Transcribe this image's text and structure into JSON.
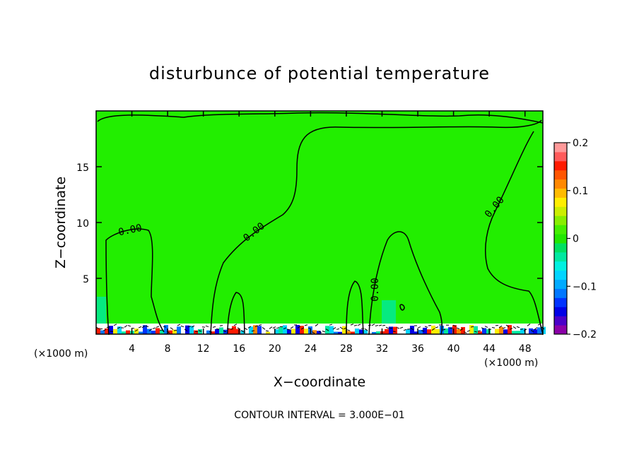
{
  "chart_data": {
    "type": "heatmap",
    "title": "disturbunce of potential temperature",
    "xlabel": "X−coordinate",
    "ylabel": "Z−coordinate",
    "x_unit_left": "(×1000 m)",
    "x_unit_right": "(×1000 m)",
    "xlim": [
      0,
      50
    ],
    "ylim": [
      0,
      20
    ],
    "x_ticks": [
      4,
      8,
      12,
      16,
      20,
      24,
      28,
      32,
      36,
      40,
      44,
      48
    ],
    "x_tick_labels": [
      "4",
      "8",
      "12",
      "16",
      "20",
      "24",
      "28",
      "32",
      "36",
      "40",
      "44",
      "48"
    ],
    "y_ticks": [
      5,
      10,
      15
    ],
    "y_tick_labels": [
      "5",
      "10",
      "15"
    ],
    "contour_labels": [
      "0.00",
      "0.00",
      "0.00",
      "0.00"
    ],
    "colorbar": {
      "min": -0.2,
      "max": 0.2,
      "tick_values": [
        0.2,
        0.1,
        0,
        -0.1,
        -0.2
      ],
      "tick_labels": [
        "0.2",
        "0.1",
        "0",
        "−0.1",
        "−0.2"
      ],
      "colors": [
        "#8b00a8",
        "#4a00c8",
        "#0000e6",
        "#0033ff",
        "#0077ff",
        "#00aaff",
        "#00d4ff",
        "#00f0e0",
        "#00e8a0",
        "#00e060",
        "#22e600",
        "#44ee00",
        "#88ee00",
        "#ccee00",
        "#ffee00",
        "#ffbb00",
        "#ff8800",
        "#ff5500",
        "#ff1a00",
        "#ff5a5a",
        "#ff9999"
      ]
    },
    "background_color": "#22ee00",
    "footer": "CONTOUR INTERVAL = 3.000E−01"
  }
}
